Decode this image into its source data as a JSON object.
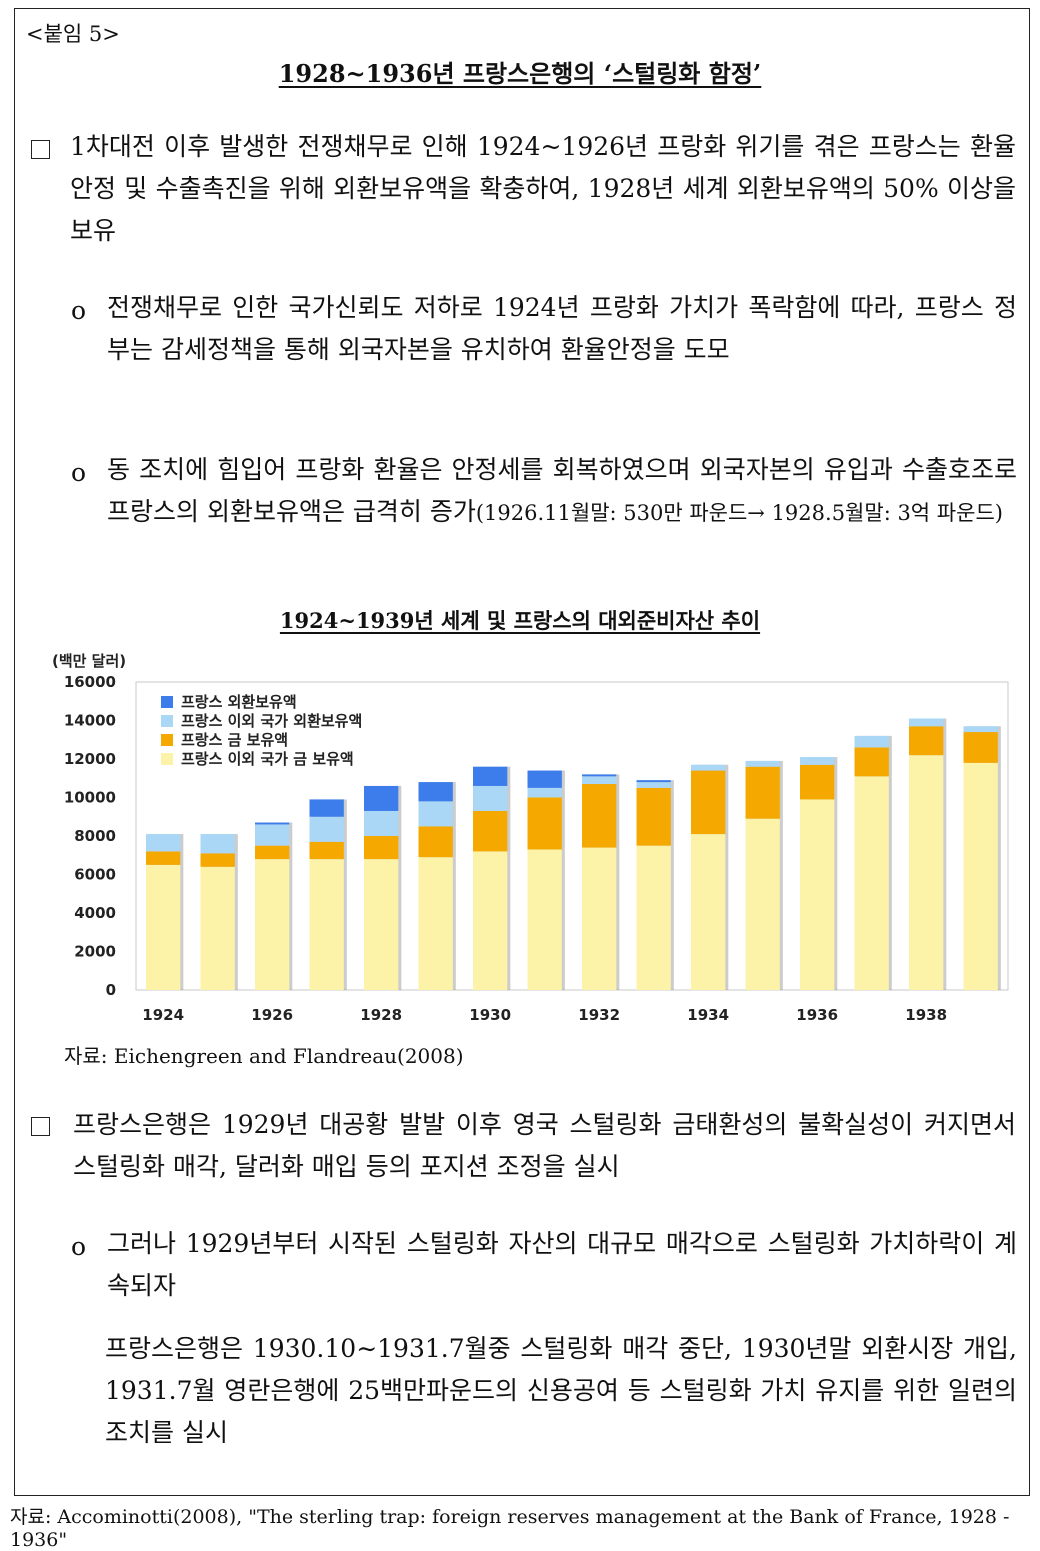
{
  "attachment_label": "<붙임 5>",
  "title": "1928~1936년 프랑스은행의 ‘스털링화 함정’",
  "section1": {
    "main": "1차대전 이후 발생한 전쟁채무로 인해 1924~1926년 프랑화 위기를 겪은 프랑스는 환율안정 및 수출촉진을 위해 외환보유액을 확충하여, 1928년 세계 외환보유액의 50% 이상을 보유",
    "bullet_marker": "o",
    "sub1": "전쟁채무로 인한 국가신뢰도 저하로 1924년 프랑화 가치가 폭락함에 따라, 프랑스 정부는 감세정책을 통해 외국자본을 유치하여 환율안정을 도모",
    "sub2_main": "동 조치에 힘입어 프랑화 환율은 안정세를 회복하였으며 외국자본의 유입과 수출호조로 프랑스의 외환보유액은 급격히 증가",
    "sub2_detail": "(1926.11월말: 530만 파운드→ 1928.5월말: 3억 파운드)"
  },
  "chart_caption": "1924~1939년 세계 및 프랑스의 대외준비자산 추이",
  "chart_source": "자료: Eichengreen and Flandreau(2008)",
  "chart_data": {
    "type": "bar",
    "stacked": true,
    "unit_label": "(백만 달러)",
    "x": [
      1924,
      1925,
      1926,
      1927,
      1928,
      1929,
      1930,
      1931,
      1932,
      1933,
      1934,
      1935,
      1936,
      1937,
      1938,
      1939
    ],
    "x_tick_labels": [
      "1924",
      "1926",
      "1928",
      "1930",
      "1932",
      "1934",
      "1936",
      "1938"
    ],
    "ylim": [
      0,
      16000
    ],
    "y_ticks": [
      "0",
      "2000",
      "4000",
      "6000",
      "8000",
      "10000",
      "12000",
      "14000",
      "16000"
    ],
    "legend_position": "top-left",
    "series": [
      {
        "name": "프랑스 이외 국가 금 보유액",
        "color": "#FDF3A8",
        "values": [
          6500,
          6400,
          6800,
          6800,
          6800,
          6900,
          7200,
          7300,
          7400,
          7500,
          8100,
          8900,
          9900,
          11100,
          12200,
          11800
        ]
      },
      {
        "name": "프랑스 금 보유액",
        "color": "#F5A800",
        "values": [
          700,
          700,
          700,
          900,
          1200,
          1600,
          2100,
          2700,
          3300,
          3000,
          3300,
          2700,
          1800,
          1500,
          1500,
          1600
        ]
      },
      {
        "name": "프랑스 이외 국가 외환보유액",
        "color": "#A9D7F5",
        "values": [
          900,
          1000,
          1100,
          1300,
          1300,
          1300,
          1300,
          500,
          400,
          300,
          300,
          300,
          400,
          600,
          400,
          300
        ]
      },
      {
        "name": "프랑스 외환보유액",
        "color": "#3C7DEB",
        "values": [
          0,
          0,
          100,
          900,
          1300,
          1000,
          1000,
          900,
          100,
          100,
          0,
          0,
          0,
          0,
          0,
          0
        ]
      }
    ]
  },
  "section2": {
    "main": "프랑스은행은 1929년 대공황 발발 이후 영국 스털링화 금태환성의 불확실성이 커지면서 스털링화 매각, 달러화 매입 등의 포지션 조정을 실시",
    "bullet_marker": "o",
    "sub1": "그러나 1929년부터 시작된 스털링화 자산의 대규모 매각으로 스털링화 가치하락이 계속되자",
    "sub1_cont": "프랑스은행은 1930.10∼1931.7월중 스털링화 매각 중단, 1930년말 외환시장 개입, 1931.7월 영란은행에 25백만파운드의 신용공여 등 스털링화 가치 유지를 위한 일련의 조치를 실시"
  },
  "footer_source": "자료: Accominotti(2008), \"The sterling trap: foreign reserves management at the Bank of France, 1928 - 1936\""
}
